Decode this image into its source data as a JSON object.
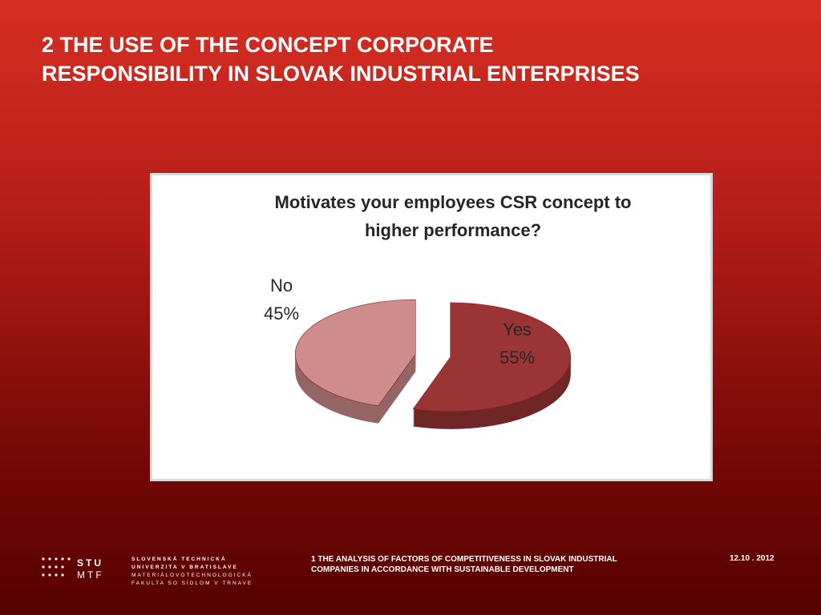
{
  "slide": {
    "title": [
      "2 THE USE OF THE CONCEPT CORPORATE",
      "RESPONSIBILITY IN SLOVAK INDUSTRIAL ENTERPRISES"
    ]
  },
  "chart_data": {
    "type": "pie",
    "title": [
      "Motivates your employees CSR concept to",
      "higher performance?"
    ],
    "categories": [
      "Yes",
      "No"
    ],
    "values": [
      55,
      45
    ],
    "value_labels": [
      "55%",
      "45%"
    ],
    "colors": [
      "#9b3535",
      "#cf8c8c"
    ]
  },
  "footer": {
    "logo": [
      "STU",
      "MTF"
    ],
    "university": [
      "SLOVENSKÁ TECHNICKÁ",
      "UNIVERZITA V BRATISLAVE",
      "MATERIÁLOVOTECHNOLOGICKÁ",
      "FAKULTA SO SÍDLOM V TRNAVE"
    ],
    "caption": [
      "1 THE ANALYSIS OF FACTORS OF COMPETITIVENESS IN SLOVAK INDUSTRIAL",
      "COMPANIES IN ACCORDANCE WITH SUSTAINABLE DEVELOPMENT"
    ],
    "date": "12.10 . 2012"
  }
}
